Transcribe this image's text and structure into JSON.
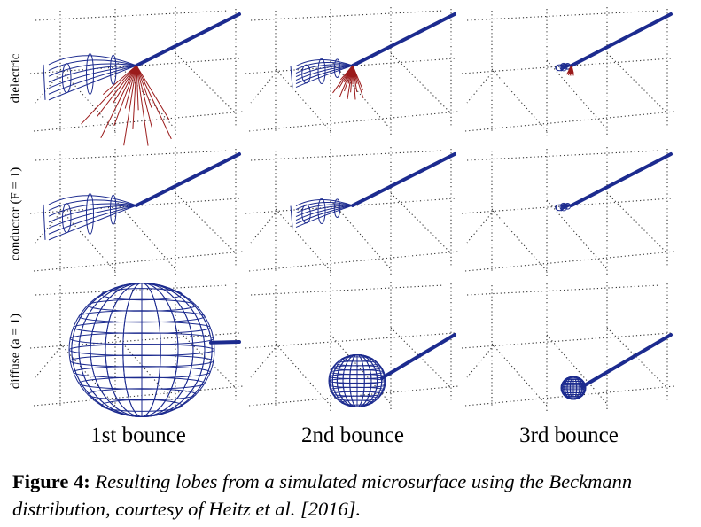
{
  "figure": {
    "row_labels": [
      "dielectric",
      "conductor (F = 1)",
      "diffuse (a = 1)"
    ],
    "col_labels": [
      "1st bounce",
      "2nd bounce",
      "3rd bounce"
    ],
    "colors": {
      "reflection": "#1c2b8f",
      "transmission": "#9b1b1b",
      "grid": "#333333"
    },
    "panels": [
      {
        "row": "dielectric",
        "col": "1st bounce",
        "reflection_lobe": "large",
        "transmission_lobe": "large"
      },
      {
        "row": "dielectric",
        "col": "2nd bounce",
        "reflection_lobe": "medium",
        "transmission_lobe": "small"
      },
      {
        "row": "dielectric",
        "col": "3rd bounce",
        "reflection_lobe": "tiny",
        "transmission_lobe": "tiny"
      },
      {
        "row": "conductor",
        "col": "1st bounce",
        "reflection_lobe": "large"
      },
      {
        "row": "conductor",
        "col": "2nd bounce",
        "reflection_lobe": "medium"
      },
      {
        "row": "conductor",
        "col": "3rd bounce",
        "reflection_lobe": "tiny"
      },
      {
        "row": "diffuse",
        "col": "1st bounce",
        "reflection_lobe": "large sphere"
      },
      {
        "row": "diffuse",
        "col": "2nd bounce",
        "reflection_lobe": "medium sphere"
      },
      {
        "row": "diffuse",
        "col": "3rd bounce",
        "reflection_lobe": "small sphere"
      }
    ]
  },
  "caption": {
    "lead": "Figure 4:",
    "body": "Resulting lobes from a simulated microsurface using the Beckmann distribution, courtesy of Heitz et al. [2016]."
  }
}
